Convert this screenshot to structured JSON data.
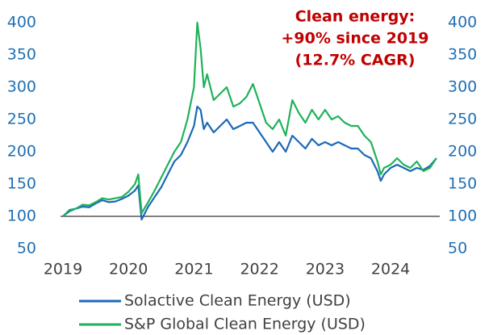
{
  "chart_data": {
    "type": "line",
    "annotation": [
      "Clean energy:",
      "+90% since 2019",
      "(12.7% CAGR)"
    ],
    "annotation_color": "#c00000",
    "x": [
      2019.0,
      2019.1,
      2019.2,
      2019.3,
      2019.4,
      2019.5,
      2019.6,
      2019.7,
      2019.8,
      2019.9,
      2020.0,
      2020.1,
      2020.15,
      2020.2,
      2020.3,
      2020.4,
      2020.5,
      2020.6,
      2020.7,
      2020.8,
      2020.9,
      2021.0,
      2021.05,
      2021.1,
      2021.15,
      2021.2,
      2021.3,
      2021.4,
      2021.5,
      2021.6,
      2021.7,
      2021.8,
      2021.9,
      2022.0,
      2022.1,
      2022.2,
      2022.3,
      2022.4,
      2022.5,
      2022.6,
      2022.7,
      2022.8,
      2022.9,
      2023.0,
      2023.1,
      2023.2,
      2023.3,
      2023.4,
      2023.5,
      2023.6,
      2023.7,
      2023.8,
      2023.85,
      2023.9,
      2024.0,
      2024.1,
      2024.2,
      2024.3,
      2024.4,
      2024.5,
      2024.6,
      2024.7
    ],
    "series": [
      {
        "name": "Solactive Clean Energy (USD)",
        "color": "#1b68b8",
        "axis": "y",
        "values": [
          100,
          108,
          112,
          115,
          114,
          120,
          125,
          122,
          123,
          127,
          132,
          140,
          148,
          95,
          115,
          130,
          145,
          165,
          185,
          195,
          215,
          240,
          270,
          265,
          235,
          245,
          230,
          240,
          250,
          235,
          240,
          245,
          245,
          230,
          215,
          200,
          215,
          200,
          225,
          215,
          205,
          220,
          210,
          215,
          210,
          215,
          210,
          205,
          205,
          195,
          190,
          170,
          155,
          165,
          175,
          180,
          175,
          170,
          175,
          172,
          178,
          190
        ]
      },
      {
        "name": "S&P Global Clean Energy (USD)",
        "color": "#1fb25a",
        "axis": "y",
        "values": [
          100,
          110,
          112,
          118,
          117,
          122,
          128,
          126,
          128,
          130,
          138,
          150,
          165,
          105,
          122,
          140,
          160,
          180,
          200,
          215,
          250,
          300,
          400,
          360,
          300,
          320,
          280,
          290,
          300,
          270,
          275,
          285,
          305,
          275,
          245,
          235,
          250,
          225,
          280,
          260,
          245,
          265,
          250,
          265,
          250,
          255,
          245,
          240,
          240,
          225,
          215,
          185,
          165,
          175,
          180,
          190,
          180,
          175,
          185,
          170,
          175,
          190
        ]
      }
    ],
    "reference_line": 100,
    "xlim": [
      2019,
      2024.75
    ],
    "xticks": [
      2019,
      2020,
      2021,
      2022,
      2023,
      2024
    ],
    "ylim": [
      50,
      400
    ],
    "yticks": [
      50,
      100,
      150,
      200,
      250,
      300,
      350,
      400
    ],
    "y2lim": [
      50,
      400
    ],
    "y2ticks": [
      50,
      100,
      150,
      200,
      250,
      300,
      350,
      400
    ],
    "tick_color": "#1f6fb5",
    "grid": false
  }
}
